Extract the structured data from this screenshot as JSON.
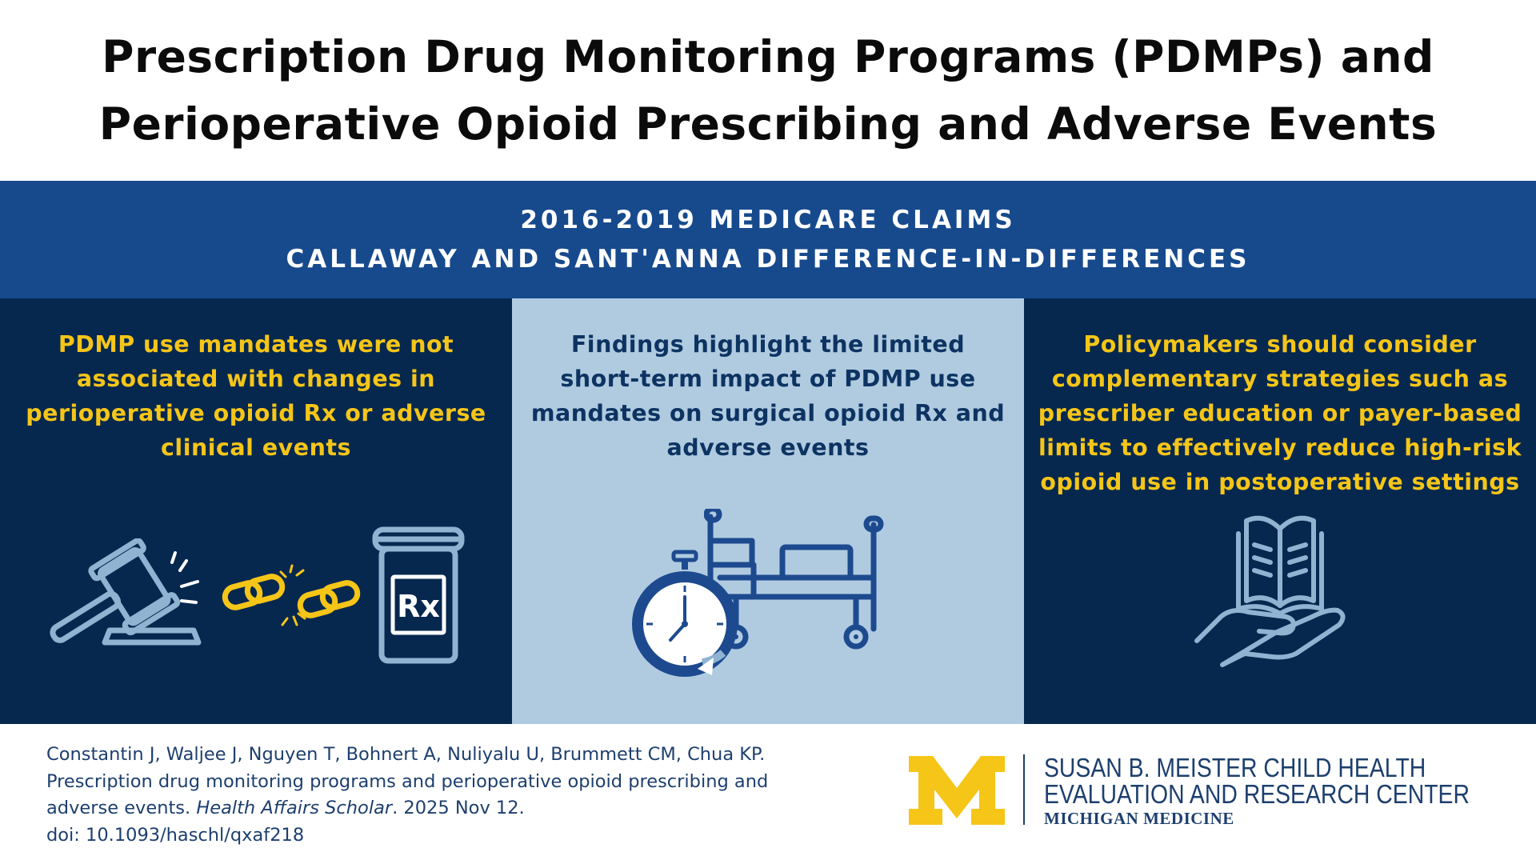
{
  "title": {
    "line1": "Prescription Drug Monitoring Programs (PDMPs) and",
    "line2": "Perioperative Opioid Prescribing and Adverse Events"
  },
  "band": {
    "line1": "2016-2019 MEDICARE CLAIMS",
    "line2": "CALLAWAY AND SANT'ANNA DIFFERENCE-IN-DIFFERENCES"
  },
  "panels": [
    {
      "lines": [
        "PDMP use mandates were not",
        "associated with changes in",
        "perioperative opioid Rx or adverse",
        "clinical events"
      ],
      "icons": [
        "gavel-icon",
        "broken-chain-icon",
        "pill-bottle-icon"
      ],
      "rx_label": "Rx"
    },
    {
      "lines": [
        "Findings highlight the limited",
        "short-term impact of PDMP use",
        "mandates on surgical opioid Rx and",
        "adverse events"
      ],
      "icons": [
        "stopwatch-icon",
        "hospital-bed-icon"
      ]
    },
    {
      "lines": [
        "Policymakers should consider",
        "complementary strategies such as",
        "prescriber education or payer-based",
        "limits to effectively reduce high-risk",
        "opioid use in postoperative settings"
      ],
      "icons": [
        "hand-holding-book-icon"
      ]
    }
  ],
  "citation": {
    "authors": "Constantin J, Waljee J, Nguyen T, Bohnert A, Nuliyalu U, Brummett CM, Chua KP. Prescription drug monitoring programs and perioperative opioid prescribing and adverse events.",
    "journal": "Health Affairs Scholar",
    "date": ". 2025 Nov 12.",
    "doi": "doi: 10.1093/haschl/qxaf218"
  },
  "org": {
    "line1": "SUSAN B. MEISTER CHILD HEALTH",
    "line2": "EVALUATION AND RESEARCH CENTER",
    "line3": "MICHIGAN MEDICINE"
  },
  "colors": {
    "navy": "#06284f",
    "band_blue": "#174a8d",
    "light_blue": "#b0cbe0",
    "yellow": "#f5c518",
    "icon_light": "#8fb3d1",
    "icon_dark": "#1d4a8f"
  }
}
